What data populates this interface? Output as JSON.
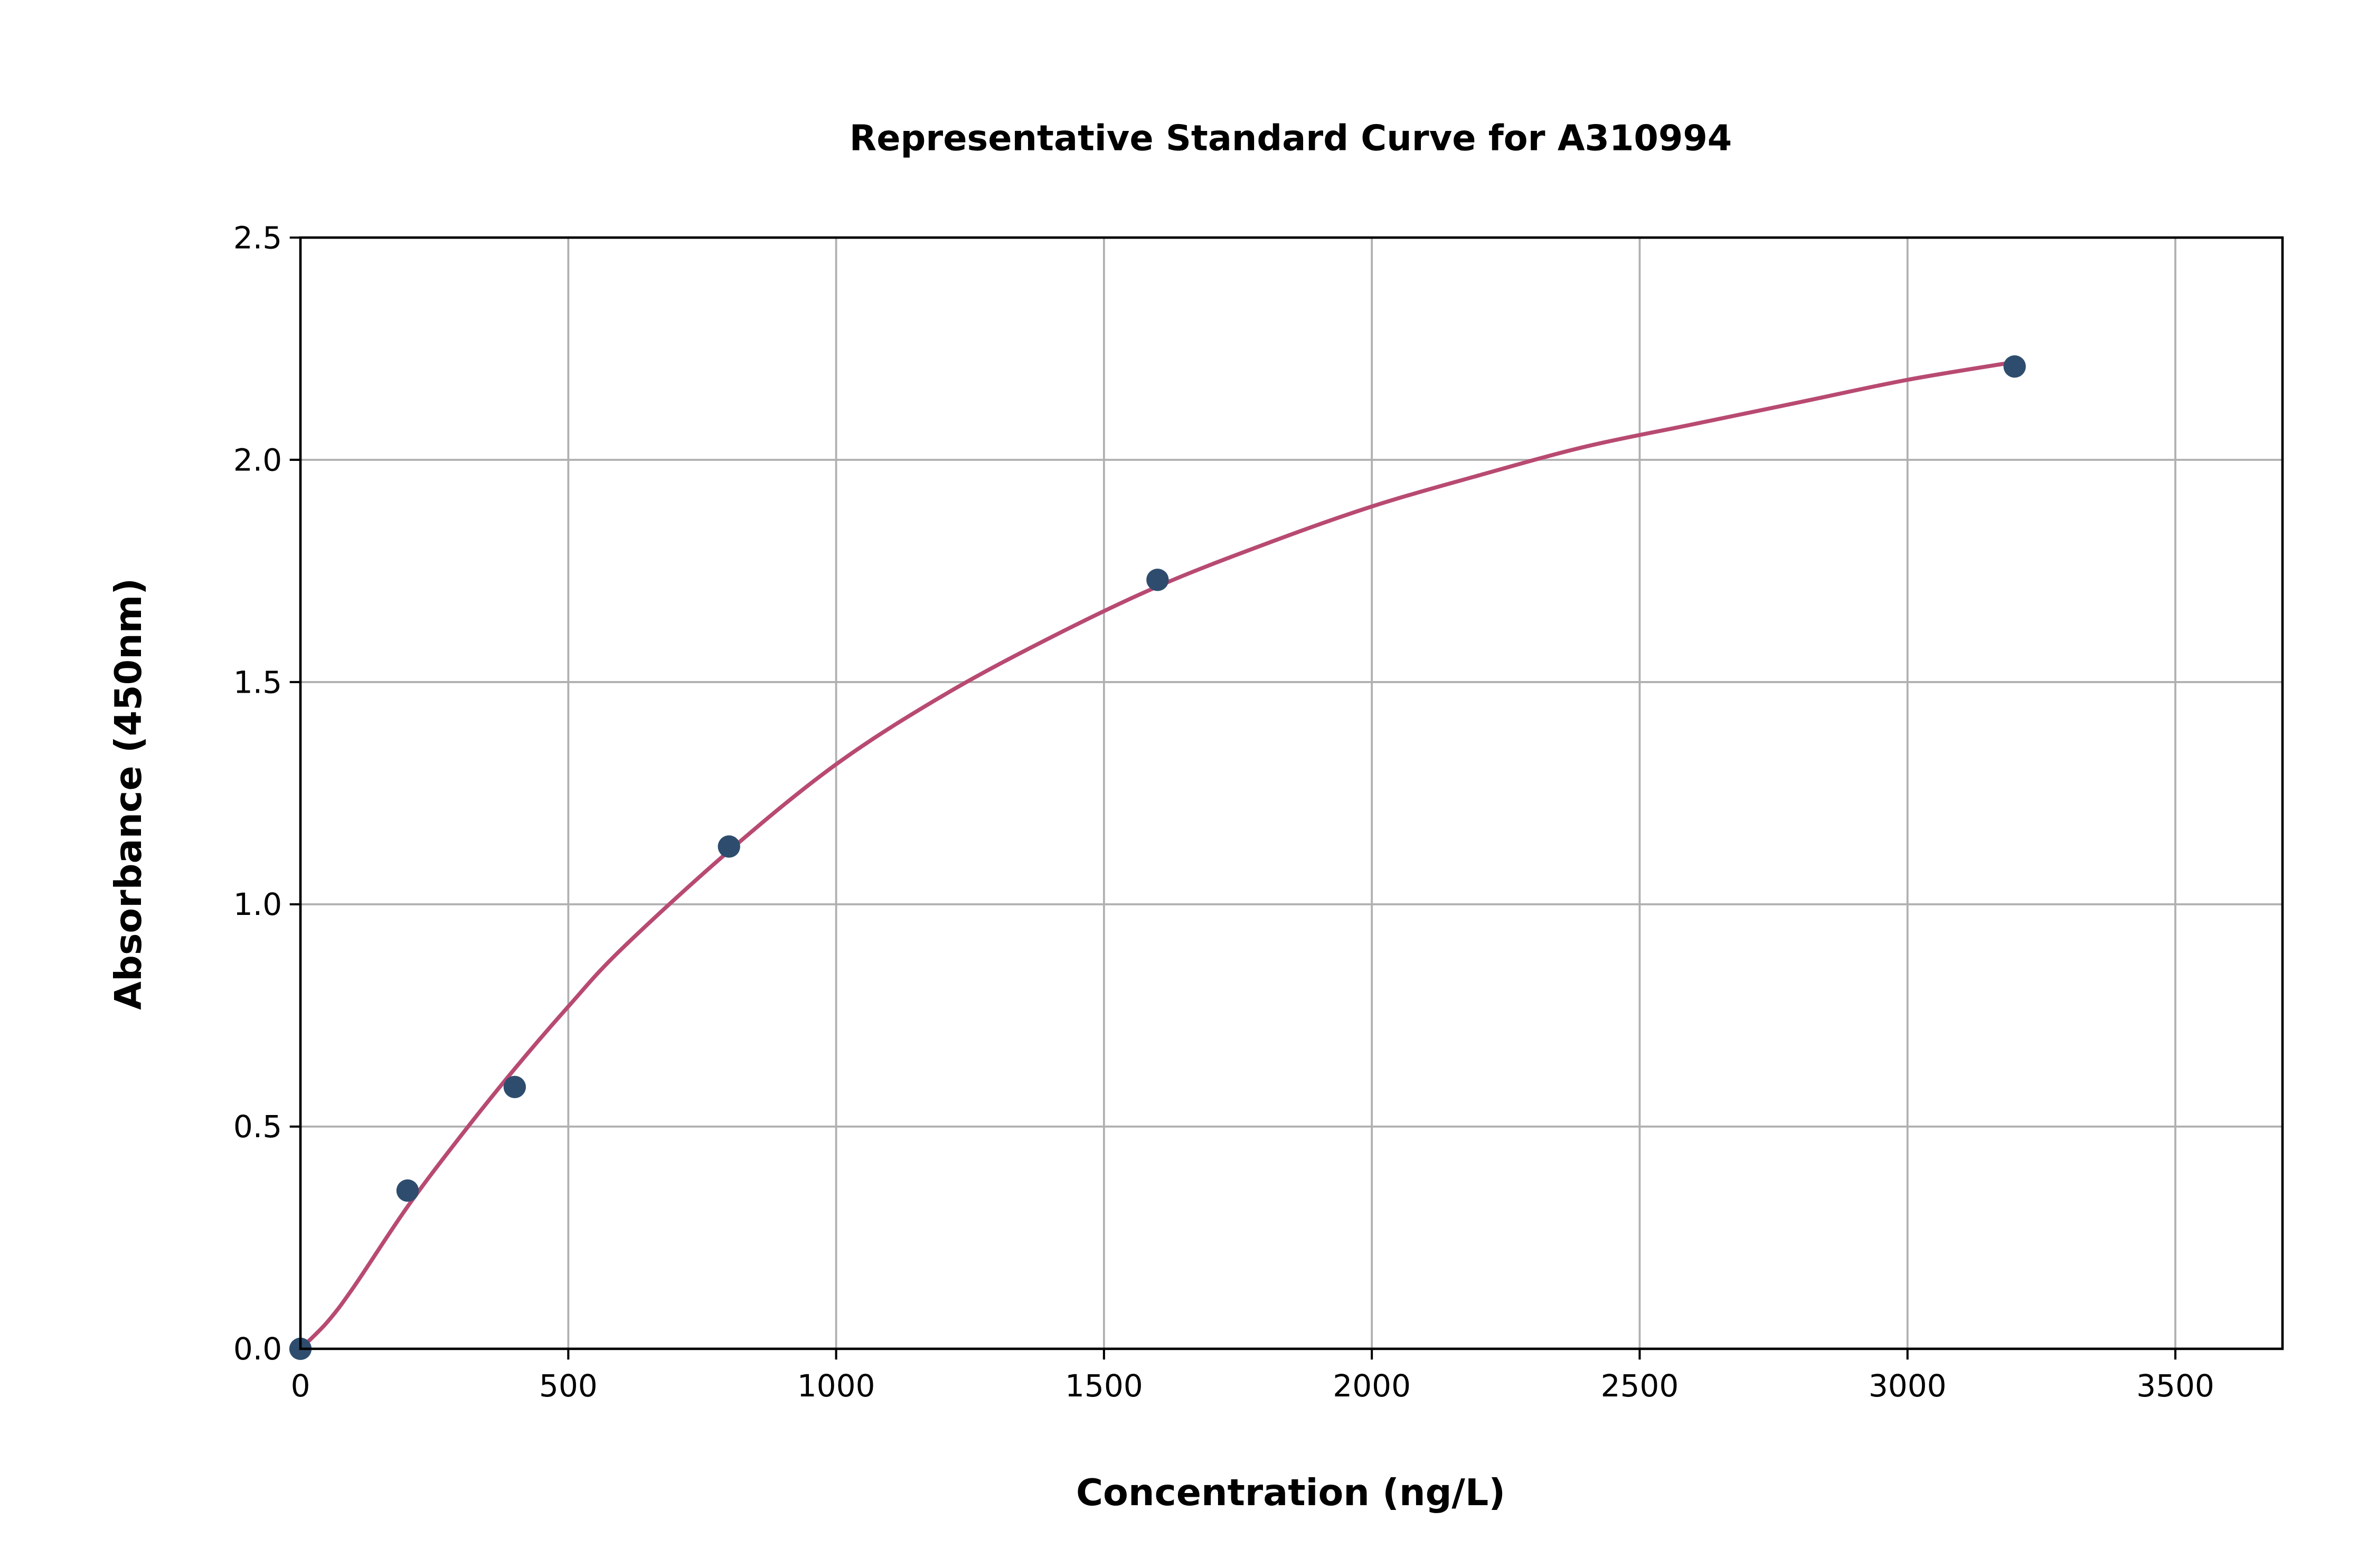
{
  "chart_data": {
    "type": "scatter",
    "title": "Representative Standard Curve for A310994",
    "xlabel": "Concentration (ng/L)",
    "ylabel": "Absorbance (450nm)",
    "xlim": [
      0,
      3700
    ],
    "ylim": [
      0,
      2.5
    ],
    "xticks": [
      0,
      500,
      1000,
      1500,
      2000,
      2500,
      3000,
      3500
    ],
    "yticks": [
      0.0,
      0.5,
      1.0,
      1.5,
      2.0,
      2.5
    ],
    "xtick_labels": [
      "0",
      "500",
      "1000",
      "1500",
      "2000",
      "2500",
      "3000",
      "3500"
    ],
    "ytick_labels": [
      "0.0",
      "0.5",
      "1.0",
      "1.5",
      "2.0",
      "2.5"
    ],
    "grid": true,
    "points": {
      "x": [
        0,
        200,
        400,
        800,
        1600,
        3200
      ],
      "y": [
        0.0,
        0.356,
        0.589,
        1.13,
        1.73,
        2.21
      ]
    },
    "fit_curve": {
      "x": [
        0,
        50,
        100,
        200,
        300,
        400,
        500,
        600,
        800,
        1000,
        1200,
        1400,
        1600,
        1800,
        2000,
        2200,
        2400,
        2600,
        2800,
        3000,
        3200
      ],
      "y": [
        0.0,
        0.06,
        0.14,
        0.32,
        0.48,
        0.63,
        0.77,
        0.9,
        1.12,
        1.315,
        1.47,
        1.6,
        1.715,
        1.81,
        1.895,
        1.965,
        2.03,
        2.08,
        2.13,
        2.18,
        2.22
      ]
    },
    "colors": {
      "points": "#2e4d6e",
      "curve": "#b84a72",
      "grid": "#b0b0b0"
    }
  }
}
